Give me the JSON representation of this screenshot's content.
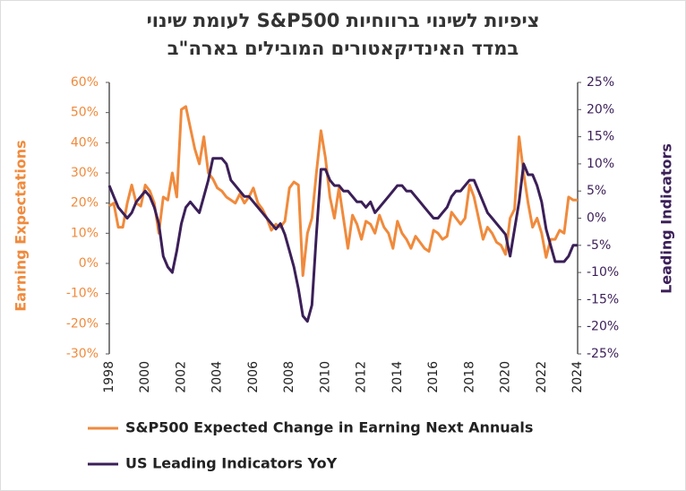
{
  "chart_data": {
    "type": "line",
    "title": [
      "ציפיות לשינוי ברווחיות S&P500 לעומת שינוי",
      "במדד האינדיקאטורים המובילים בארה\"ב"
    ],
    "ylabel": "Earning Expectations",
    "y2label": "Leading Indicators",
    "x": [
      1998,
      1998.25,
      1998.5,
      1998.75,
      1999,
      1999.25,
      1999.5,
      1999.75,
      2000,
      2000.25,
      2000.5,
      2000.75,
      2001,
      2001.25,
      2001.5,
      2001.75,
      2002,
      2002.25,
      2002.5,
      2002.75,
      2003,
      2003.25,
      2003.5,
      2003.75,
      2004,
      2004.25,
      2004.5,
      2004.75,
      2005,
      2005.25,
      2005.5,
      2005.75,
      2006,
      2006.25,
      2006.5,
      2006.75,
      2007,
      2007.25,
      2007.5,
      2007.75,
      2008,
      2008.25,
      2008.5,
      2008.75,
      2009,
      2009.25,
      2009.5,
      2009.75,
      2010,
      2010.25,
      2010.5,
      2010.75,
      2011,
      2011.25,
      2011.5,
      2011.75,
      2012,
      2012.25,
      2012.5,
      2012.75,
      2013,
      2013.25,
      2013.5,
      2013.75,
      2014,
      2014.25,
      2014.5,
      2014.75,
      2015,
      2015.25,
      2015.5,
      2015.75,
      2016,
      2016.25,
      2016.5,
      2016.75,
      2017,
      2017.25,
      2017.5,
      2017.75,
      2018,
      2018.25,
      2018.5,
      2018.75,
      2019,
      2019.25,
      2019.5,
      2019.75,
      2020,
      2020.25,
      2020.5,
      2020.75,
      2021,
      2021.25,
      2021.5,
      2021.75,
      2022,
      2022.25,
      2022.5,
      2022.75,
      2023,
      2023.25,
      2023.5,
      2023.75,
      2024
    ],
    "series": [
      {
        "name": "S&P500 Expected Change in Earning Next Annuals",
        "color": "#f08a3c",
        "axis": "y",
        "values": [
          19,
          20,
          12,
          12,
          20,
          26,
          20,
          19,
          26,
          24,
          20,
          10,
          22,
          21,
          30,
          22,
          51,
          52,
          45,
          38,
          33,
          42,
          30,
          28,
          25,
          24,
          22,
          21,
          20,
          23,
          20,
          22,
          25,
          20,
          18,
          15,
          11,
          13,
          12,
          14,
          25,
          27,
          26,
          -4,
          10,
          15,
          30,
          44,
          35,
          22,
          15,
          25,
          15,
          5,
          16,
          13,
          8,
          14,
          13,
          10,
          16,
          12,
          10,
          5,
          14,
          10,
          8,
          5,
          9,
          7,
          5,
          4,
          11,
          10,
          8,
          9,
          17,
          15,
          13,
          15,
          26,
          22,
          15,
          8,
          12,
          10,
          7,
          6,
          3,
          15,
          18,
          42,
          30,
          20,
          12,
          15,
          10,
          2,
          8,
          8,
          11,
          10,
          22,
          21,
          21
        ]
      },
      {
        "name": "US Leading  Indicators YoY",
        "color": "#3b1f58",
        "axis": "y2",
        "values": [
          6,
          4,
          2,
          1,
          0,
          1,
          3,
          4,
          5,
          4,
          2,
          -1,
          -7,
          -9,
          -10,
          -6,
          -1,
          2,
          3,
          2,
          1,
          4,
          7,
          11,
          11,
          11,
          10,
          7,
          6,
          5,
          4,
          4,
          3,
          2,
          1,
          0,
          -1,
          -2,
          -1,
          -3,
          -6,
          -9,
          -13,
          -18,
          -19,
          -16,
          -3,
          9,
          9,
          7,
          6,
          6,
          5,
          5,
          4,
          3,
          3,
          2,
          3,
          1,
          2,
          3,
          4,
          5,
          6,
          6,
          5,
          5,
          4,
          3,
          2,
          1,
          0,
          0,
          1,
          2,
          4,
          5,
          5,
          6,
          7,
          7,
          5,
          3,
          1,
          0,
          -1,
          -2,
          -3,
          -7,
          -2,
          3,
          10,
          8,
          8,
          6,
          3,
          -2,
          -5,
          -8,
          -8,
          -8,
          -7,
          -5,
          -5
        ]
      }
    ],
    "xlim": [
      1998,
      2024
    ],
    "xticks": [
      1998,
      2000,
      2002,
      2004,
      2006,
      2008,
      2010,
      2012,
      2014,
      2016,
      2018,
      2020,
      2022,
      2024
    ],
    "ylim": [
      -30,
      60
    ],
    "yticks": [
      {
        "value": 60,
        "label": "60%"
      },
      {
        "value": 50,
        "label": "50%"
      },
      {
        "value": 40,
        "label": "40%"
      },
      {
        "value": 30,
        "label": "30%"
      },
      {
        "value": 20,
        "label": "20%"
      },
      {
        "value": 10,
        "label": "10%"
      },
      {
        "value": 0,
        "label": "0%"
      },
      {
        "value": -10,
        "label": "-10%"
      },
      {
        "value": -20,
        "label": "-20%"
      },
      {
        "value": -30,
        "label": "-30%"
      }
    ],
    "y2lim": [
      -25,
      25
    ],
    "y2ticks": [
      {
        "value": 25,
        "label": "25%"
      },
      {
        "value": 20,
        "label": "20%"
      },
      {
        "value": 15,
        "label": "15%"
      },
      {
        "value": 10,
        "label": "10%"
      },
      {
        "value": 5,
        "label": "5%"
      },
      {
        "value": 0,
        "label": "0%"
      },
      {
        "value": -5,
        "label": "-5%"
      },
      {
        "value": -10,
        "label": "-10%"
      },
      {
        "value": -15,
        "label": "-15%"
      },
      {
        "value": -20,
        "label": "-20%"
      },
      {
        "value": -25,
        "label": "-25%"
      }
    ],
    "legend": "bottom"
  }
}
